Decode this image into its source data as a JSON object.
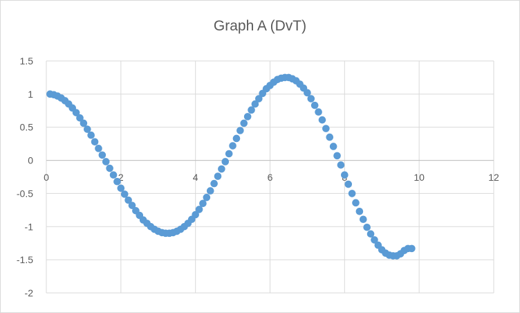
{
  "chart_data": {
    "type": "scatter",
    "title": "Graph A (DvT)",
    "xlabel": "",
    "ylabel": "",
    "xlim": [
      0,
      12
    ],
    "ylim": [
      -2,
      1.5
    ],
    "x_ticks": [
      "0",
      "2",
      "4",
      "6",
      "8",
      "10",
      "12"
    ],
    "y_ticks": [
      "1.5",
      "1",
      "0.5",
      "0",
      "-0.5",
      "-1",
      "-1.5",
      "-2"
    ],
    "grid": "major both axes",
    "legend": "none",
    "marker_color": "#5b9bd5",
    "series": [
      {
        "x": [
          0.1,
          0.2,
          0.3,
          0.4,
          0.5,
          0.6,
          0.7,
          0.8,
          0.9,
          1.0,
          1.1,
          1.2,
          1.3,
          1.4,
          1.5,
          1.6,
          1.7,
          1.8,
          1.9,
          2.0,
          2.1,
          2.2,
          2.3,
          2.4,
          2.5,
          2.6,
          2.7,
          2.8,
          2.9,
          3.0,
          3.1,
          3.2,
          3.3,
          3.4,
          3.5,
          3.6,
          3.7,
          3.8,
          3.9,
          4.0,
          4.1,
          4.2,
          4.3,
          4.4,
          4.5,
          4.6,
          4.7,
          4.8,
          4.9,
          5.0,
          5.1,
          5.2,
          5.3,
          5.4,
          5.5,
          5.6,
          5.7,
          5.8,
          5.9,
          6.0,
          6.1,
          6.2,
          6.3,
          6.4,
          6.5,
          6.6,
          6.7,
          6.8,
          6.9,
          7.0,
          7.1,
          7.2,
          7.3,
          7.4,
          7.5,
          7.6,
          7.7,
          7.8,
          7.9,
          8.0,
          8.1,
          8.2,
          8.3,
          8.4,
          8.5,
          8.6,
          8.7,
          8.8,
          8.9,
          9.0,
          9.1,
          9.2,
          9.3,
          9.4,
          9.5,
          9.6,
          9.7,
          9.8
        ],
        "y": [
          1.0,
          0.99,
          0.97,
          0.94,
          0.9,
          0.85,
          0.79,
          0.72,
          0.64,
          0.56,
          0.47,
          0.38,
          0.28,
          0.18,
          0.08,
          -0.02,
          -0.12,
          -0.22,
          -0.32,
          -0.42,
          -0.51,
          -0.6,
          -0.68,
          -0.76,
          -0.83,
          -0.9,
          -0.95,
          -1.0,
          -1.04,
          -1.07,
          -1.09,
          -1.1,
          -1.1,
          -1.09,
          -1.07,
          -1.04,
          -1.0,
          -0.95,
          -0.89,
          -0.82,
          -0.74,
          -0.65,
          -0.56,
          -0.46,
          -0.35,
          -0.24,
          -0.13,
          -0.02,
          0.1,
          0.22,
          0.33,
          0.45,
          0.56,
          0.66,
          0.76,
          0.85,
          0.93,
          1.01,
          1.08,
          1.13,
          1.18,
          1.22,
          1.24,
          1.25,
          1.25,
          1.23,
          1.2,
          1.15,
          1.09,
          1.02,
          0.93,
          0.83,
          0.73,
          0.61,
          0.48,
          0.35,
          0.21,
          0.07,
          -0.07,
          -0.22,
          -0.36,
          -0.5,
          -0.64,
          -0.77,
          -0.89,
          -1.01,
          -1.11,
          -1.2,
          -1.28,
          -1.35,
          -1.4,
          -1.43,
          -1.44,
          -1.44,
          -1.41,
          -1.36,
          -1.33,
          -1.33
        ]
      }
    ]
  }
}
